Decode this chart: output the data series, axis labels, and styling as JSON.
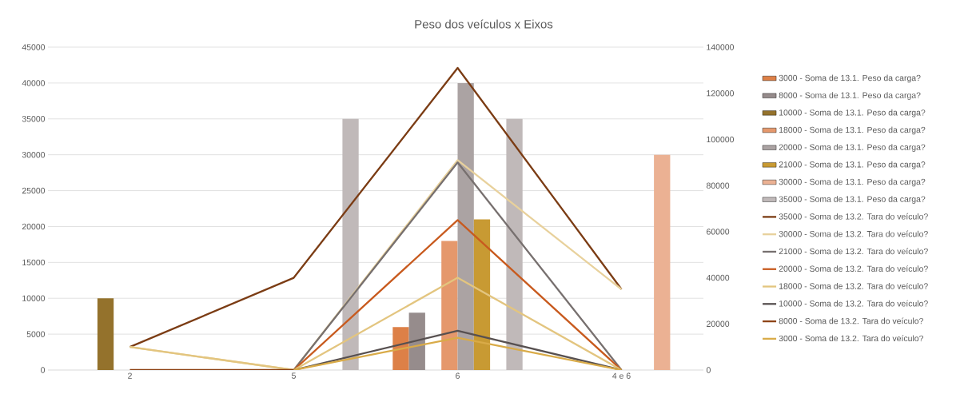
{
  "chart_data": {
    "type": "bar",
    "title": "Peso dos veículos x Eixos",
    "categories": [
      "2",
      "5",
      "6",
      "4 e 6"
    ],
    "ylim": [
      0,
      45000
    ],
    "yticks": [
      0,
      5000,
      10000,
      15000,
      20000,
      25000,
      30000,
      35000,
      40000,
      45000
    ],
    "y2lim": [
      0,
      140000
    ],
    "y2ticks": [
      0,
      20000,
      40000,
      60000,
      80000,
      100000,
      120000,
      140000
    ],
    "grid": "y",
    "legend": "right",
    "marker": "none",
    "series": [
      {
        "name": "3000 - Soma de 13.1. Peso da carga?",
        "color": "#dd8047",
        "values": [
          null,
          null,
          6000,
          null
        ]
      },
      {
        "name": "8000 - Soma de 13.1. Peso da carga?",
        "color": "#968c8c",
        "values": [
          null,
          null,
          8000,
          null
        ]
      },
      {
        "name": "10000 - Soma de 13.1. Peso da carga?",
        "color": "#94722c",
        "values": [
          10000,
          null,
          null,
          null
        ]
      },
      {
        "name": "18000 - Soma de 13.1. Peso da carga?",
        "color": "#e5986c",
        "values": [
          null,
          null,
          18000,
          null
        ]
      },
      {
        "name": "20000 - Soma de 13.1. Peso da carga?",
        "color": "#aba3a3",
        "values": [
          null,
          null,
          40000,
          null
        ]
      },
      {
        "name": "21000 - Soma de 13.1. Peso da carga?",
        "color": "#c89a33",
        "values": [
          null,
          null,
          21000,
          null
        ]
      },
      {
        "name": "30000 - Soma de 13.1. Peso da carga?",
        "color": "#ebb193",
        "values": [
          null,
          null,
          null,
          30000
        ]
      },
      {
        "name": "35000 - Soma de 13.1. Peso da carga?",
        "color": "#c0b9b9",
        "values": [
          null,
          35000,
          35000,
          null
        ]
      },
      {
        "name": "35000 - Soma de 13.2. Tara do veículo?",
        "type": "line",
        "axis": "y2",
        "color": "#7b3c14",
        "values": [
          10000,
          40000,
          131000,
          35000
        ]
      },
      {
        "name": "30000 - Soma de 13.2. Tara do veículo?",
        "type": "line",
        "axis": "y2",
        "color": "#e8d19c",
        "values": [
          10000,
          0,
          91000,
          35000
        ]
      },
      {
        "name": "21000 - Soma de 13.2. Tara do veículo?",
        "type": "line",
        "axis": "y2",
        "color": "#77706f",
        "values": [
          null,
          0,
          90000,
          0
        ]
      },
      {
        "name": "20000 - Soma de 13.2. Tara do veículo?",
        "type": "line",
        "axis": "y2",
        "color": "#c85a1e",
        "values": [
          null,
          0,
          65000,
          0
        ]
      },
      {
        "name": "18000 - Soma de 13.2. Tara do veículo?",
        "type": "line",
        "axis": "y2",
        "color": "#e3c57f",
        "values": [
          10000,
          0,
          40000,
          0
        ]
      },
      {
        "name": "10000 - Soma de 13.2. Tara do veículo?",
        "type": "line",
        "axis": "y2",
        "color": "#575050",
        "values": [
          null,
          0,
          17000,
          0
        ]
      },
      {
        "name": "8000 - Soma de 13.2. Tara do veículo?",
        "type": "line",
        "axis": "y2",
        "color": "#8e4417",
        "values": [
          0,
          0,
          null,
          null
        ]
      },
      {
        "name": "3000 - Soma de 13.2. Tara do veículo?",
        "type": "line",
        "axis": "y2",
        "color": "#d9ab48",
        "values": [
          null,
          0,
          14000,
          0
        ]
      }
    ]
  }
}
